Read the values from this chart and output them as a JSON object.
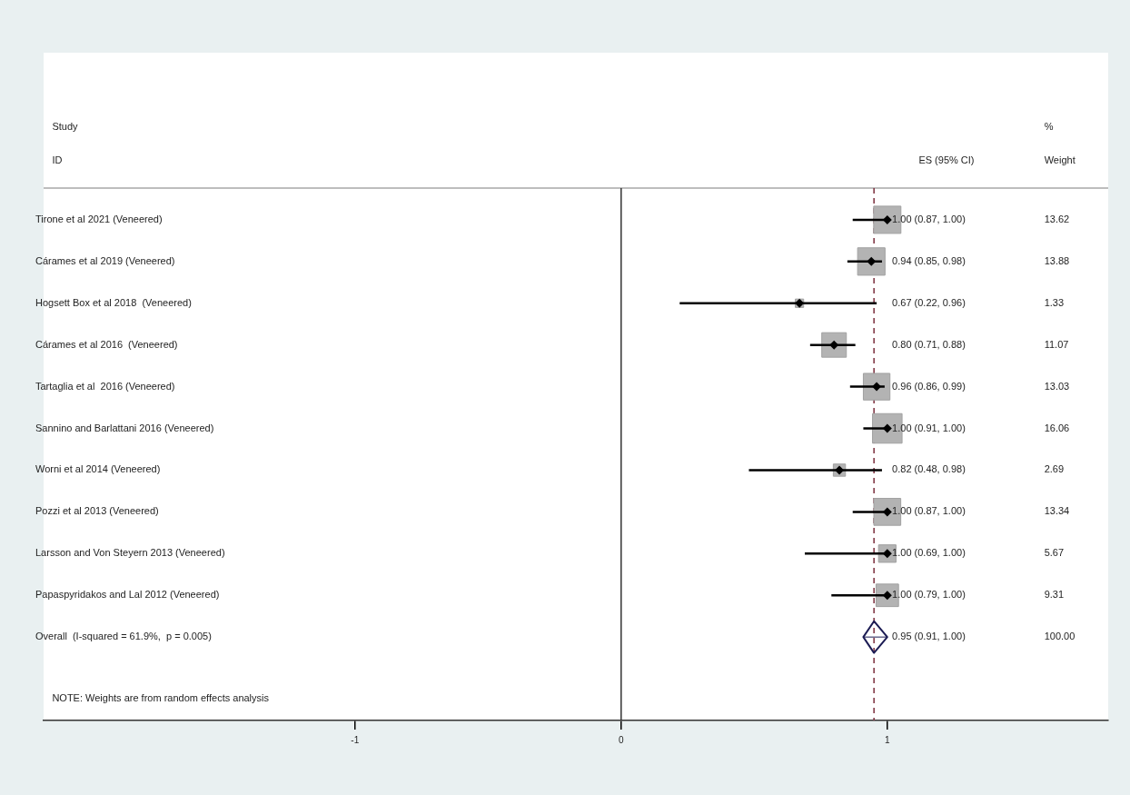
{
  "chart_data": {
    "type": "scatter",
    "categories": [
      "Tirone et al 2021 (Veneered)",
      "Cárames et al 2019 (Veneered)",
      "Hogsett Box et al 2018  (Veneered)",
      "Cárames et al 2016  (Veneered)",
      "Tartaglia et al  2016 (Veneered)",
      "Sannino and Barlattani 2016 (Veneered)",
      "Worni et al 2014 (Veneered)",
      "Pozzi et al 2013 (Veneered)",
      "Larsson and Von Steyern 2013 (Veneered)",
      "Papaspyridakos and Lal 2012 (Veneered)",
      "Overall  (I-squared = 61.9%,  p = 0.005)"
    ],
    "orientation": "horizontal",
    "series": [
      {
        "color": "#b3b3b3",
        "marker": "square",
        "values": [
          1.0,
          0.94,
          0.67,
          0.8,
          0.96,
          1.0,
          0.82,
          1.0,
          1.0,
          1.0,
          null
        ],
        "errors": [
          [
            0.87,
            1.0
          ],
          [
            0.85,
            0.98
          ],
          [
            0.22,
            0.96
          ],
          [
            0.71,
            0.88
          ],
          [
            0.86,
            0.99
          ],
          [
            0.91,
            1.0
          ],
          [
            0.48,
            0.98
          ],
          [
            0.87,
            1.0
          ],
          [
            0.69,
            1.0
          ],
          [
            0.79,
            1.0
          ],
          null
        ],
        "sizes": [
          0.85,
          0.86,
          0.08,
          0.69,
          0.81,
          1,
          0.17,
          0.83,
          0.35,
          0.58,
          null
        ]
      },
      {
        "color": "#1c1c54",
        "marker": "diamond",
        "values": [
          null,
          null,
          null,
          null,
          null,
          null,
          null,
          null,
          null,
          null,
          0.95
        ],
        "errors": [
          null,
          null,
          null,
          null,
          null,
          null,
          null,
          null,
          null,
          null,
          [
            0.91,
            1.0
          ]
        ]
      }
    ],
    "xlim": [
      -2.17,
      1.83
    ],
    "xticks": [
      -1,
      0,
      1
    ],
    "ref_lines": [
      {
        "axis": "x",
        "value": 0,
        "color": "#333333",
        "line_style": "solid"
      },
      {
        "axis": "x",
        "value": 0.95,
        "color": "#7b2d3b",
        "line_style": "dashed"
      }
    ],
    "annotations": [
      "Study",
      "ID",
      "ES (95% CI)",
      "%",
      "Weight",
      "1.00 (0.87, 1.00)",
      "0.94 (0.85, 0.98)",
      "0.67 (0.22, 0.96)",
      "0.80 (0.71, 0.88)",
      "0.96 (0.86, 0.99)",
      "1.00 (0.91, 1.00)",
      "0.82 (0.48, 0.98)",
      "1.00 (0.87, 1.00)",
      "1.00 (0.69, 1.00)",
      "1.00 (0.79, 1.00)",
      "0.95 (0.91, 1.00)",
      "13.62",
      "13.88",
      "1.33",
      "11.07",
      "13.03",
      "16.06",
      "2.69",
      "13.34",
      "5.67",
      "9.31",
      "100.00",
      "NOTE: Weights are from random effects analysis"
    ]
  }
}
